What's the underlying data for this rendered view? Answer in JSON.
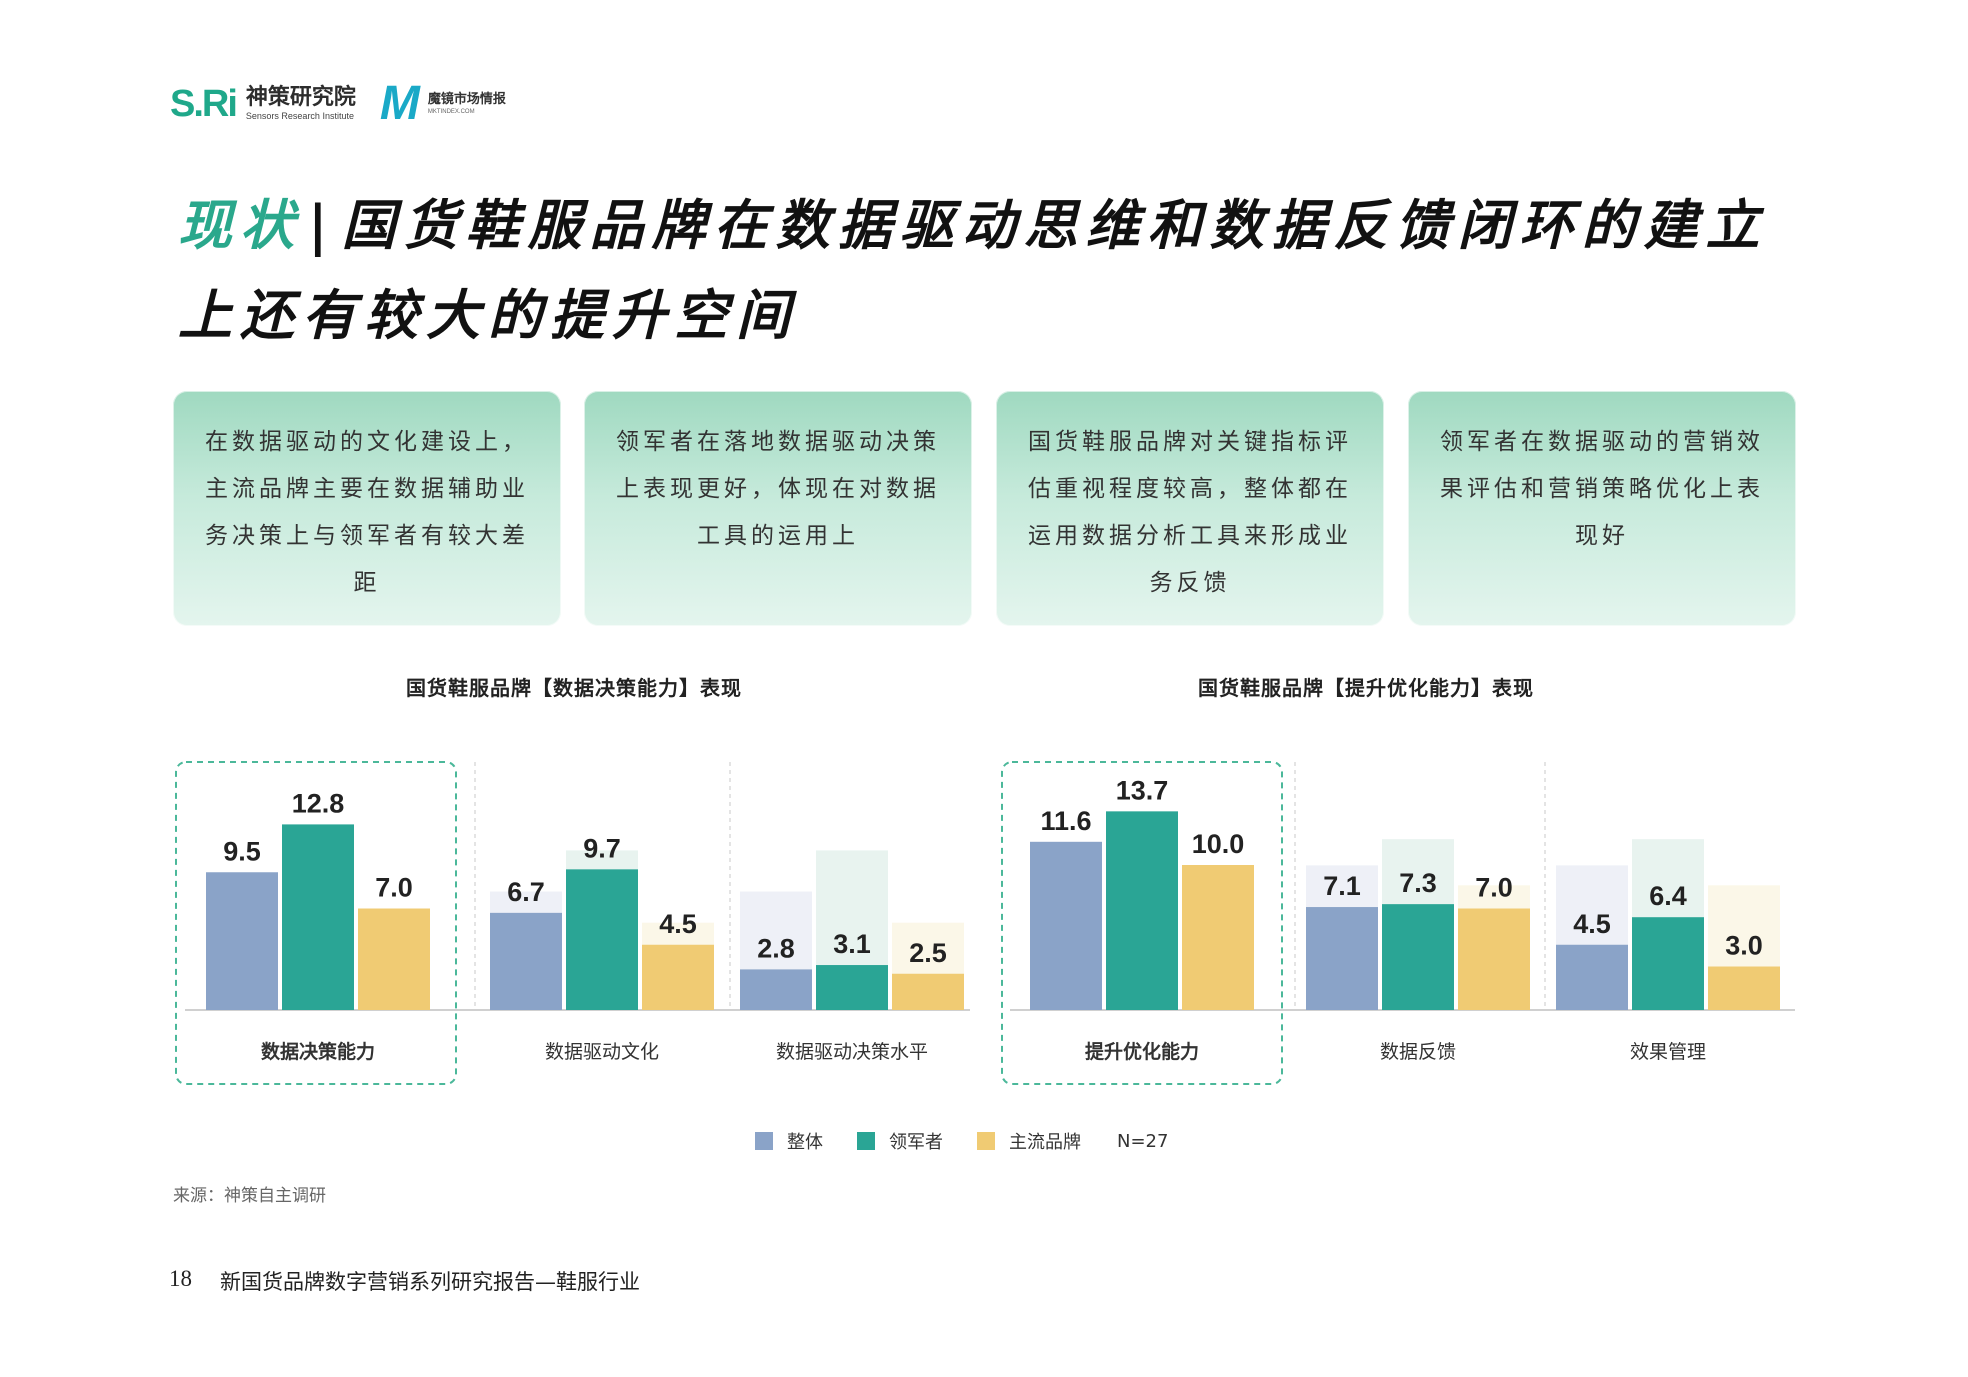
{
  "header": {
    "sri_mark": "S.Ri",
    "sri_name": "神策研究院",
    "sri_name_en": "Sensors Research Institute",
    "mk_mark": "M",
    "mk_name": "魔镜市场情报",
    "mk_name_en": "MKTINDEX.COM"
  },
  "title": {
    "accent": "现状",
    "separator": "|",
    "text": "国货鞋服品牌在数据驱动思维和数据反馈闭环的建立上还有较大的提升空间"
  },
  "cards": [
    {
      "text": "在数据驱动的文化建设上，主流品牌主要在数据辅助业务决策上与领军者有较大差距"
    },
    {
      "text": "领军者在落地数据驱动决策上表现更好，体现在对数据工具的运用上"
    },
    {
      "text": "国货鞋服品牌对关键指标评估重视程度较高，整体都在运用数据分析工具来形成业务反馈"
    },
    {
      "text": "领军者在数据驱动的营销效果评估和营销策略优化上表现好"
    }
  ],
  "colors": {
    "overall": "#8aa3c8",
    "leader": "#2aa595",
    "mainstream": "#f0cb73",
    "card_green": "#9fd9c0",
    "accent": "#2aa88c"
  },
  "chart_data": [
    {
      "type": "bar",
      "title": "国货鞋服品牌【数据决策能力】表现",
      "categories": [
        "数据决策能力",
        "数据驱动文化",
        "数据驱动决策水平"
      ],
      "highlighted_category": "数据决策能力",
      "series": [
        {
          "name": "整体",
          "values": [
            9.5,
            6.7,
            2.8
          ]
        },
        {
          "name": "领军者",
          "values": [
            12.8,
            9.7,
            3.1
          ]
        },
        {
          "name": "主流品牌",
          "values": [
            7.0,
            4.5,
            2.5
          ]
        }
      ]
    },
    {
      "type": "bar",
      "title": "国货鞋服品牌【提升优化能力】表现",
      "categories": [
        "提升优化能力",
        "数据反馈",
        "效果管理"
      ],
      "highlighted_category": "提升优化能力",
      "series": [
        {
          "name": "整体",
          "values": [
            11.6,
            7.1,
            4.5
          ]
        },
        {
          "name": "领军者",
          "values": [
            13.7,
            7.3,
            6.4
          ]
        },
        {
          "name": "主流品牌",
          "values": [
            10.0,
            7.0,
            3.0
          ]
        }
      ]
    }
  ],
  "legend": {
    "items": [
      "整体",
      "领军者",
      "主流品牌"
    ],
    "note": "N=27"
  },
  "source": "来源：神策自主调研",
  "footer": {
    "page": "18",
    "report": "新国货品牌数字营销系列研究报告—鞋服行业"
  }
}
